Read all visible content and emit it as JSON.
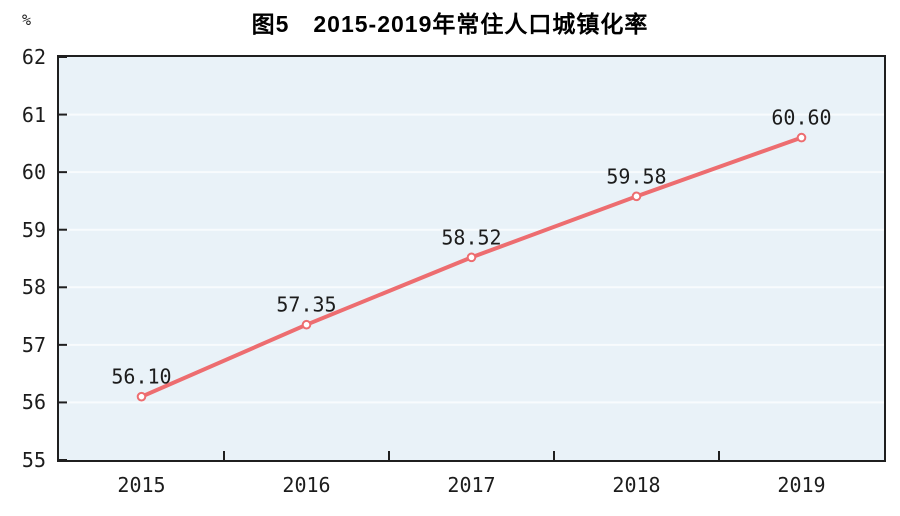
{
  "figure": {
    "title_prefix": "图5",
    "title_main": "2015-2019年常住人口城镇化率"
  },
  "chart_data": {
    "type": "line",
    "title": "图5 2015-2019年常住人口城镇化率",
    "xlabel": "",
    "ylabel": "%",
    "categories": [
      "2015",
      "2016",
      "2017",
      "2018",
      "2019"
    ],
    "series": [
      {
        "name": "常住人口城镇化率",
        "values": [
          56.1,
          57.35,
          58.52,
          59.58,
          60.6
        ],
        "point_labels": [
          "56.10",
          "57.35",
          "58.52",
          "59.58",
          "60.60"
        ]
      }
    ],
    "ylim": [
      55,
      62
    ],
    "ytick_step": 1,
    "ytick_labels": [
      "55",
      "56",
      "57",
      "58",
      "59",
      "60",
      "61",
      "62"
    ],
    "grid": "horizontal",
    "legend": "none",
    "colors": {
      "line": "#ed6d70",
      "marker_fill": "#ffffff",
      "marker_stroke": "#ed6d70",
      "plot_background": "#e9f2f8",
      "gridline": "#f8fbfd",
      "axis_border": "#1f1f1f",
      "text": "#1c1c1c",
      "title_text": "#000000"
    }
  }
}
